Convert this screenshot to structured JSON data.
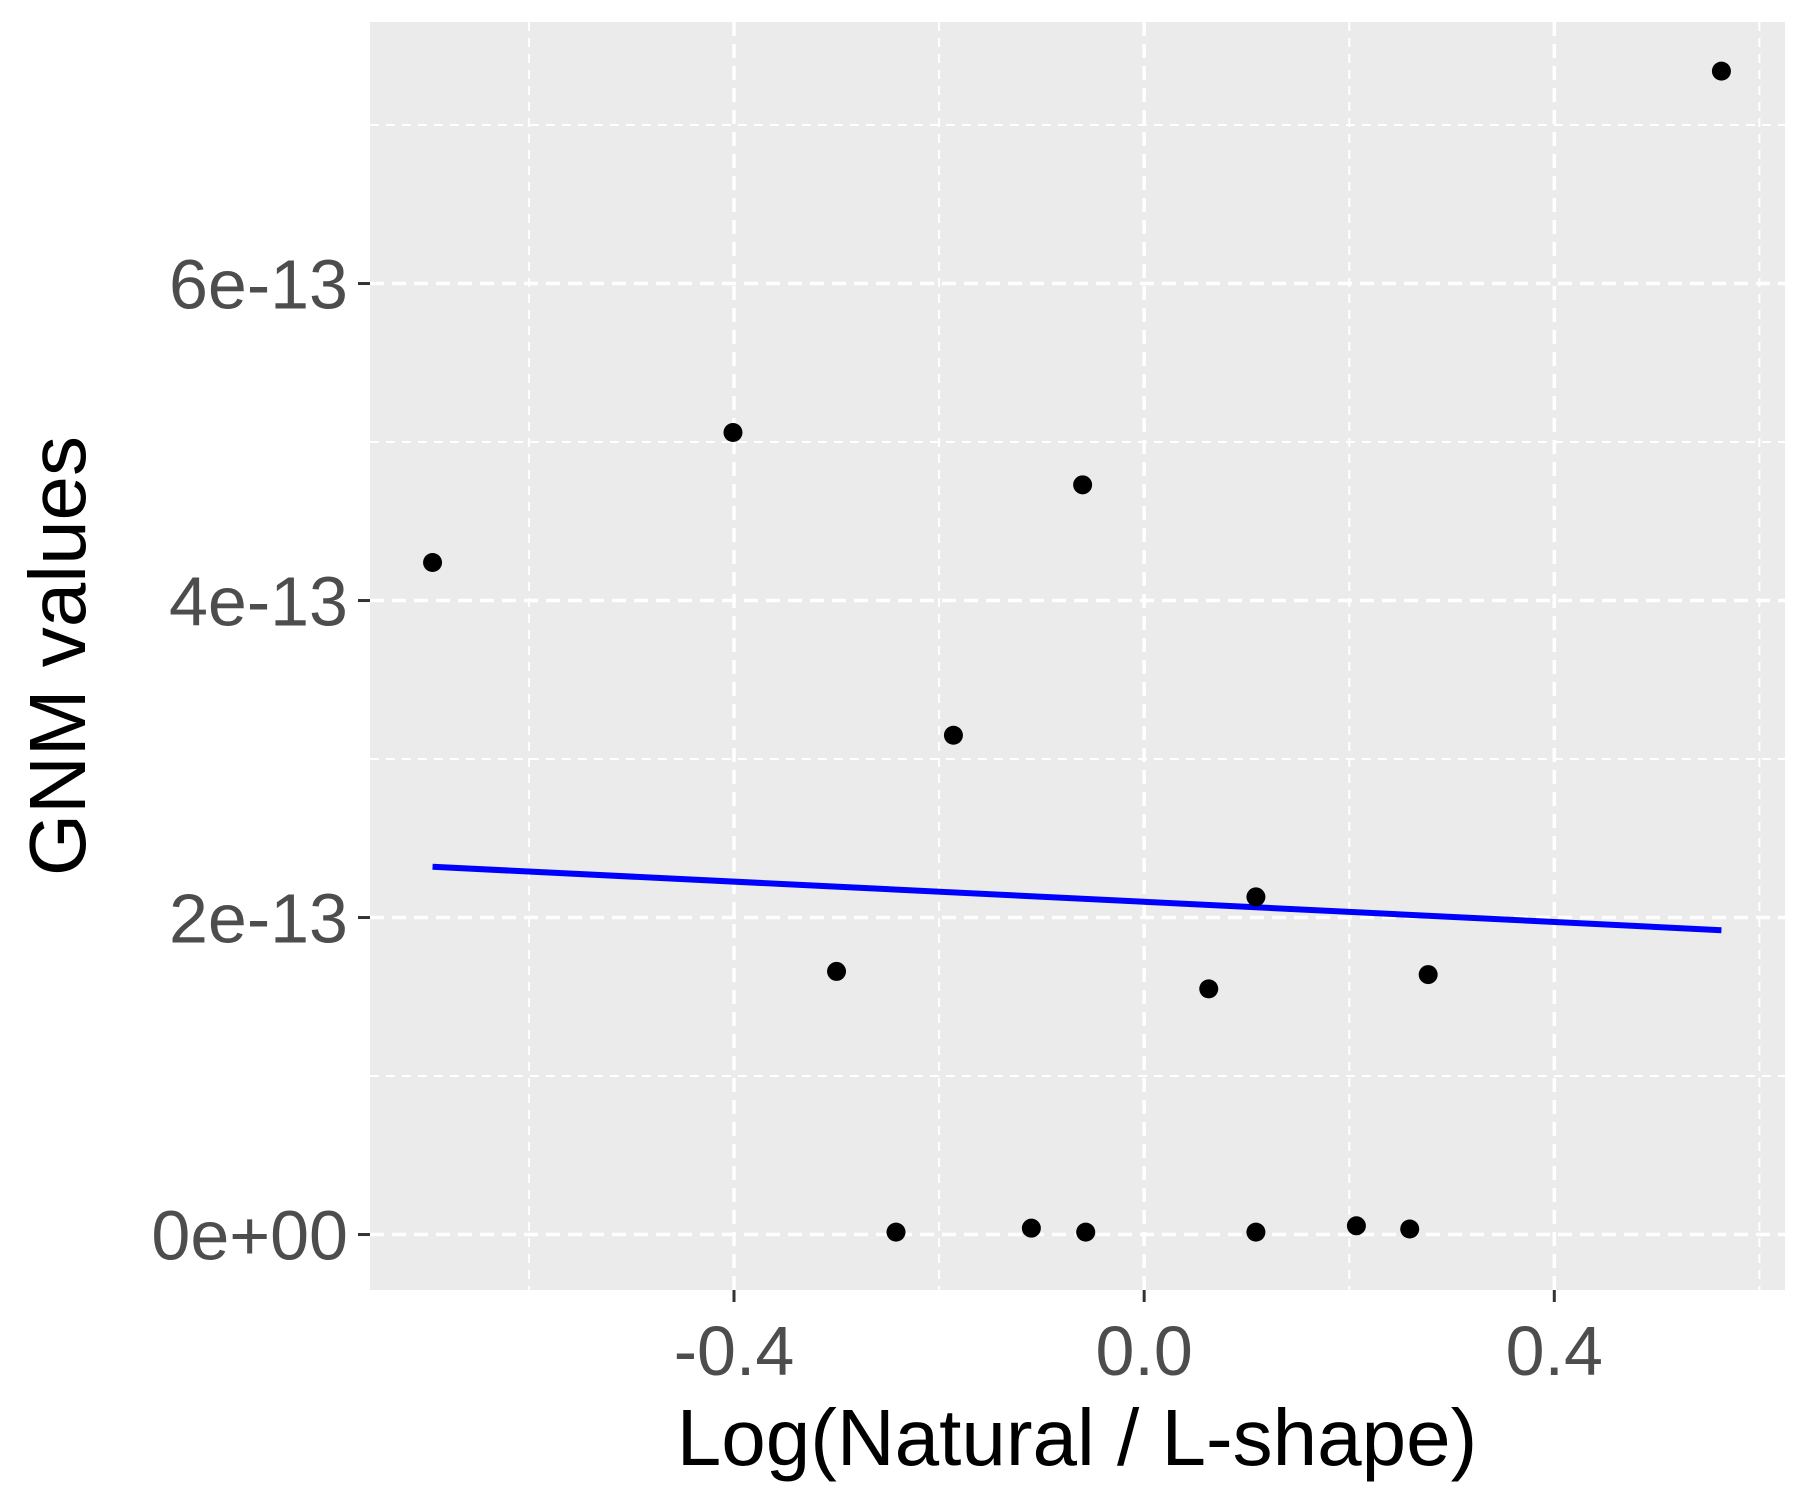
{
  "chart_data": {
    "type": "scatter",
    "xlabel": "Log(Natural / L-shape)",
    "ylabel": "GNM values",
    "x_ticks": [
      {
        "value": -0.4,
        "label": "-0.4"
      },
      {
        "value": 0.0,
        "label": "0.0"
      },
      {
        "value": 0.4,
        "label": "0.4"
      }
    ],
    "y_ticks": [
      {
        "value": 0,
        "label": "0e+00"
      },
      {
        "value": 2e-13,
        "label": "2e-13"
      },
      {
        "value": 4e-13,
        "label": "4e-13"
      },
      {
        "value": 6e-13,
        "label": "6e-13"
      }
    ],
    "xlim": [
      -0.755,
      0.625
    ],
    "ylim": [
      -3.5e-14,
      7.65e-13
    ],
    "grid": true,
    "grid_style": "dashed white on light gray panel",
    "points": [
      {
        "x": -0.694,
        "y": 4.24e-13
      },
      {
        "x": -0.401,
        "y": 5.06e-13
      },
      {
        "x": -0.3,
        "y": 1.66e-13
      },
      {
        "x": -0.242,
        "y": 1.5e-15
      },
      {
        "x": -0.186,
        "y": 3.15e-13
      },
      {
        "x": -0.11,
        "y": 4e-15
      },
      {
        "x": -0.06,
        "y": 4.73e-13
      },
      {
        "x": -0.057,
        "y": 1.5e-15
      },
      {
        "x": 0.063,
        "y": 1.55e-13
      },
      {
        "x": 0.109,
        "y": 2.13e-13
      },
      {
        "x": 0.109,
        "y": 1.5e-15
      },
      {
        "x": 0.207,
        "y": 5.5e-15
      },
      {
        "x": 0.259,
        "y": 3.5e-15
      },
      {
        "x": 0.277,
        "y": 1.64e-13
      },
      {
        "x": 0.563,
        "y": 7.34e-13
      }
    ],
    "fit_line": {
      "x": [
        -0.694,
        0.563
      ],
      "y": [
        2.32e-13,
        1.92e-13
      ],
      "color": "#0000ff"
    },
    "colors": {
      "panel": "#ebebeb",
      "grid": "#ffffff",
      "points": "#000000",
      "ticks": "#333333"
    }
  }
}
